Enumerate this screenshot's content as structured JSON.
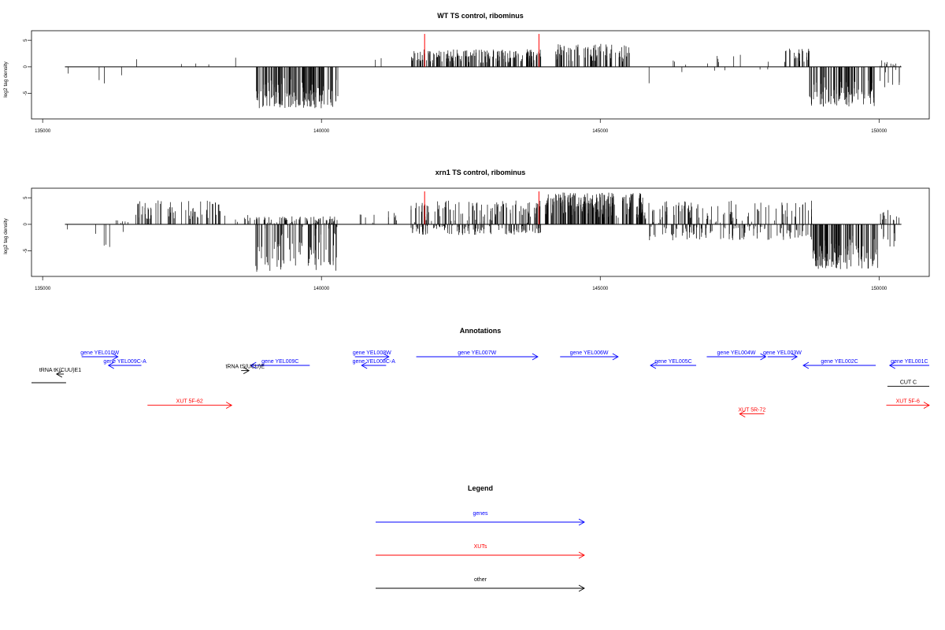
{
  "colors": {
    "gene": "#0000ff",
    "xut": "#ff0000",
    "other": "#000000",
    "marker": "#ff0000"
  },
  "chart_data": [
    {
      "type": "bar",
      "title": "WT TS control, ribominus",
      "ylabel": "log2 tag density",
      "xlim": [
        134800,
        150900
      ],
      "ylim": [
        -9.8,
        6.8
      ],
      "xticks": [
        135000,
        140000,
        145000,
        150000
      ],
      "yticks": [
        -5,
        0,
        5
      ],
      "baseline": 0,
      "baseline_range": [
        135400,
        150400
      ],
      "markers": [
        {
          "x": 141850,
          "y": 6.2
        },
        {
          "x": 143900,
          "y": 6.2
        }
      ],
      "segments": [
        {
          "from": 135420,
          "to": 135480,
          "min": -2.2,
          "max": 0,
          "density": 0.05
        },
        {
          "from": 135950,
          "to": 136050,
          "min": -2.5,
          "max": 0,
          "density": 0.04
        },
        {
          "from": 136050,
          "to": 136130,
          "min": -3.8,
          "max": 0,
          "density": 0.04
        },
        {
          "from": 136400,
          "to": 136480,
          "min": -1.7,
          "max": 0,
          "density": 0.04
        },
        {
          "from": 136650,
          "to": 136700,
          "min": 0,
          "max": 1.6,
          "density": 0.05
        },
        {
          "from": 137450,
          "to": 137500,
          "min": 0,
          "max": 1.0,
          "density": 0.05
        },
        {
          "from": 137700,
          "to": 137760,
          "min": 0,
          "max": 1.5,
          "density": 0.05
        },
        {
          "from": 137950,
          "to": 138000,
          "min": 0,
          "max": 1.0,
          "density": 0.05
        },
        {
          "from": 138450,
          "to": 138500,
          "min": 0,
          "max": 2.0,
          "density": 0.05
        },
        {
          "from": 138820,
          "to": 140300,
          "min": -7.8,
          "max": 0,
          "density": 0.62
        },
        {
          "from": 140650,
          "to": 141250,
          "min": 0,
          "max": 2.0,
          "density": 0.02
        },
        {
          "from": 141600,
          "to": 143950,
          "min": 0,
          "max": 3.3,
          "density": 0.5
        },
        {
          "from": 144200,
          "to": 145550,
          "min": 0,
          "max": 4.5,
          "density": 0.4
        },
        {
          "from": 145750,
          "to": 146600,
          "min": -3.2,
          "max": 1.5,
          "density": 0.04
        },
        {
          "from": 146900,
          "to": 148100,
          "min": -1.0,
          "max": 2.5,
          "density": 0.06
        },
        {
          "from": 148300,
          "to": 148750,
          "min": 0,
          "max": 3.5,
          "density": 0.35
        },
        {
          "from": 148750,
          "to": 149950,
          "min": -7.6,
          "max": 0,
          "density": 0.5
        },
        {
          "from": 150000,
          "to": 150400,
          "min": -4.0,
          "max": 1.5,
          "density": 0.3
        }
      ]
    },
    {
      "type": "bar",
      "title": "xrn1 TS control, ribominus",
      "ylabel": "log2 tag density",
      "xlim": [
        134800,
        150900
      ],
      "ylim": [
        -9.8,
        6.8
      ],
      "xticks": [
        135000,
        140000,
        145000,
        150000
      ],
      "yticks": [
        -5,
        0,
        5
      ],
      "baseline": 0,
      "baseline_range": [
        135400,
        150400
      ],
      "markers": [
        {
          "x": 141850,
          "y": 6.2
        },
        {
          "x": 143900,
          "y": 6.2
        }
      ],
      "segments": [
        {
          "from": 135400,
          "to": 135480,
          "min": -1.3,
          "max": 0,
          "density": 0.05
        },
        {
          "from": 135950,
          "to": 136550,
          "min": -5.6,
          "max": 0.8,
          "density": 0.12
        },
        {
          "from": 136650,
          "to": 138200,
          "min": 0,
          "max": 4.5,
          "density": 0.28
        },
        {
          "from": 138200,
          "to": 138800,
          "min": 0,
          "max": 2.2,
          "density": 0.1
        },
        {
          "from": 138820,
          "to": 140300,
          "min": -9.0,
          "max": 1.5,
          "density": 0.68
        },
        {
          "from": 140600,
          "to": 141000,
          "min": -1.5,
          "max": 2.0,
          "density": 0.1
        },
        {
          "from": 141000,
          "to": 141400,
          "min": 0,
          "max": 2.5,
          "density": 0.1
        },
        {
          "from": 141600,
          "to": 143950,
          "min": -2.0,
          "max": 4.5,
          "density": 0.62
        },
        {
          "from": 144000,
          "to": 145800,
          "min": 0,
          "max": 6.0,
          "density": 0.75
        },
        {
          "from": 145800,
          "to": 148800,
          "min": -3.0,
          "max": 4.5,
          "density": 0.45
        },
        {
          "from": 148800,
          "to": 150000,
          "min": -8.5,
          "max": 0,
          "density": 0.6
        },
        {
          "from": 150000,
          "to": 150400,
          "min": -4.5,
          "max": 3.0,
          "density": 0.35
        }
      ]
    }
  ],
  "annotations": {
    "title": "Annotations",
    "features": [
      {
        "kind": "gene",
        "label": "gene YEL010W",
        "start": 135700,
        "end": 136350,
        "dir": "right",
        "row": 0
      },
      {
        "kind": "gene",
        "label": "gene YEL009C-A",
        "start": 136180,
        "end": 136770,
        "dir": "left",
        "row": 1
      },
      {
        "kind": "gene",
        "label": "gene YEL009C",
        "start": 138730,
        "end": 139790,
        "dir": "left",
        "row": 1
      },
      {
        "kind": "gene",
        "label": "gene YEL008W",
        "start": 140600,
        "end": 141210,
        "dir": "right",
        "row": 0
      },
      {
        "kind": "gene",
        "label": "gene YEL008C-A",
        "start": 140720,
        "end": 141160,
        "dir": "left",
        "row": 1
      },
      {
        "kind": "gene",
        "label": "gene YEL007W",
        "start": 141700,
        "end": 143880,
        "dir": "right",
        "row": 0
      },
      {
        "kind": "gene",
        "label": "gene YEL006W",
        "start": 144280,
        "end": 145320,
        "dir": "right",
        "row": 0
      },
      {
        "kind": "gene",
        "label": "gene YEL005C",
        "start": 145900,
        "end": 146720,
        "dir": "left",
        "row": 1
      },
      {
        "kind": "gene",
        "label": "gene YEL004W",
        "start": 146910,
        "end": 147970,
        "dir": "right",
        "row": 0
      },
      {
        "kind": "gene",
        "label": "gene YEL003W",
        "start": 148000,
        "end": 148530,
        "dir": "right",
        "row": 0
      },
      {
        "kind": "gene",
        "label": "gene YEL002C",
        "start": 148640,
        "end": 149940,
        "dir": "left",
        "row": 1
      },
      {
        "kind": "gene",
        "label": "gene YEL001C",
        "start": 150190,
        "end": 150900,
        "dir": "left",
        "row": 1
      },
      {
        "kind": "other",
        "label": "tRNA tK(CUU)E1",
        "start": 135250,
        "end": 135380,
        "dir": "left",
        "row": 2
      },
      {
        "kind": "other",
        "label": "tRNA tS(UCU)E",
        "start": 138560,
        "end": 138700,
        "dir": "right",
        "row": 1.6
      },
      {
        "kind": "other",
        "label": "",
        "start": 134800,
        "end": 135420,
        "dir": "none",
        "row": 3
      },
      {
        "kind": "other",
        "label": "CUT C",
        "start": 150150,
        "end": 150900,
        "dir": "none",
        "row": 3.4
      },
      {
        "kind": "xut",
        "label": "XUT 5F-62",
        "start": 136880,
        "end": 138390,
        "dir": "right",
        "row": 5.6
      },
      {
        "kind": "xut",
        "label": "XUT 5R-72",
        "start": 147500,
        "end": 147940,
        "dir": "left",
        "row": 6.6
      },
      {
        "kind": "xut",
        "label": "XUT 5F-6",
        "start": 150130,
        "end": 150900,
        "dir": "right",
        "row": 5.6
      }
    ]
  },
  "legend": {
    "title": "Legend",
    "items": [
      {
        "kind": "gene",
        "label": "genes"
      },
      {
        "kind": "xut",
        "label": "XUTs"
      },
      {
        "kind": "other",
        "label": "other"
      }
    ]
  }
}
